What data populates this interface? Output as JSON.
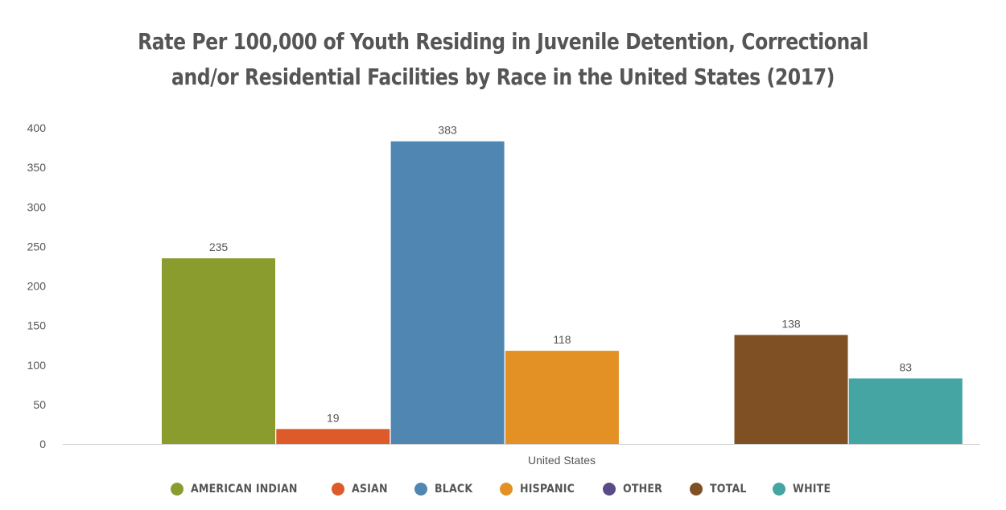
{
  "chart_data": {
    "type": "bar",
    "title_lines": [
      "Rate Per 100,000 of Youth Residing in Juvenile Detention, Correctional",
      "and/or Residential Facilities by Race in the United States (2017)"
    ],
    "categories": [
      "United States"
    ],
    "ylim": [
      0,
      400
    ],
    "yticks": [
      0,
      50,
      100,
      150,
      200,
      250,
      300,
      350,
      400
    ],
    "grid": false,
    "legend_position": "bottom",
    "series": [
      {
        "name": "AMERICAN INDIAN",
        "color": "#8b9c2f",
        "values": [
          235
        ]
      },
      {
        "name": "ASIAN",
        "color": "#dd5a2b",
        "values": [
          19
        ]
      },
      {
        "name": "BLACK",
        "color": "#5087b2",
        "values": [
          383
        ]
      },
      {
        "name": "HISPANIC",
        "color": "#e39125",
        "values": [
          118
        ]
      },
      {
        "name": "OTHER",
        "color": "#5b4a85",
        "values": [
          null
        ]
      },
      {
        "name": "TOTAL",
        "color": "#7f5024",
        "values": [
          138
        ]
      },
      {
        "name": "WHITE",
        "color": "#44a5a3",
        "values": [
          83
        ]
      }
    ]
  }
}
